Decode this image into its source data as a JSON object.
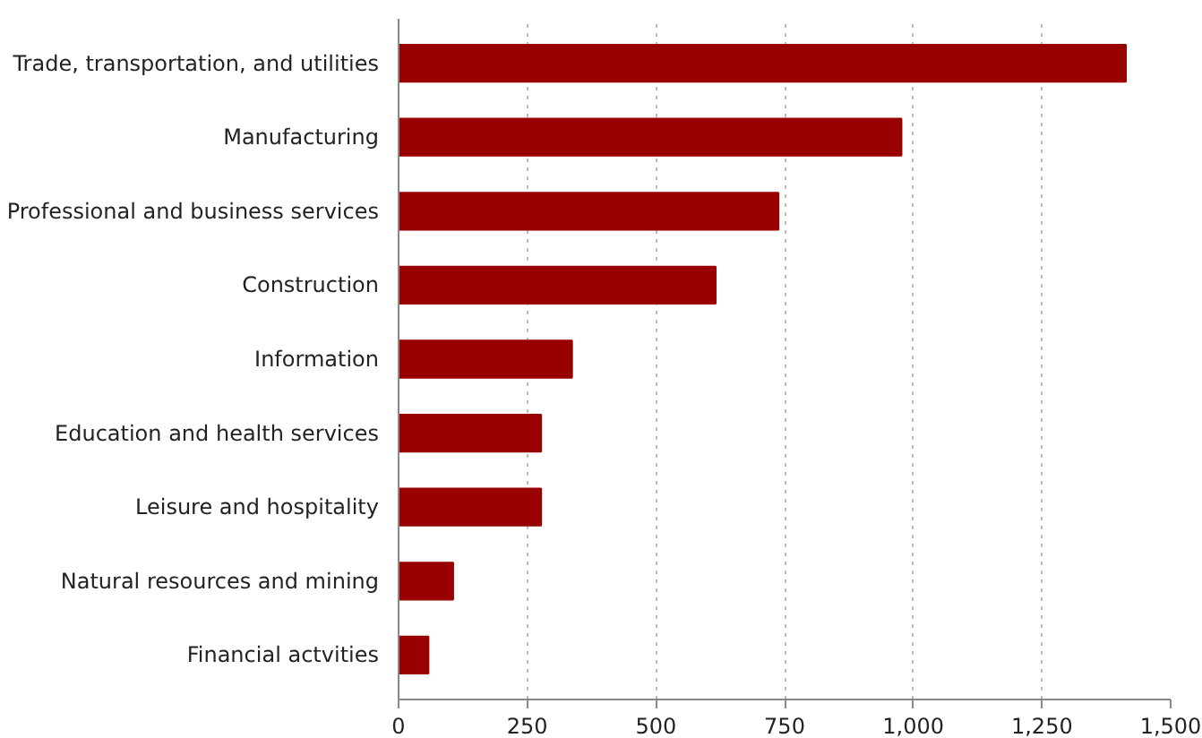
{
  "chart_data": {
    "type": "bar",
    "orientation": "horizontal",
    "categories": [
      "Trade, transportation, and utilities",
      "Manufacturing",
      "Professional and business services",
      "Construction",
      "Information",
      "Education and health services",
      "Leisure and hospitality",
      "Natural resources and mining",
      "Financial actvities"
    ],
    "values": [
      1413,
      977,
      738,
      616,
      337,
      277,
      277,
      106,
      58
    ],
    "color": "#990000",
    "xlim": [
      0,
      1500
    ],
    "xticks": [
      0,
      250,
      500,
      750,
      {
        "value": 1000,
        "label": "1,000"
      },
      {
        "value": 1250,
        "label": "1,250"
      },
      {
        "value": 1500,
        "label": "1,500"
      }
    ],
    "grid": "x"
  }
}
